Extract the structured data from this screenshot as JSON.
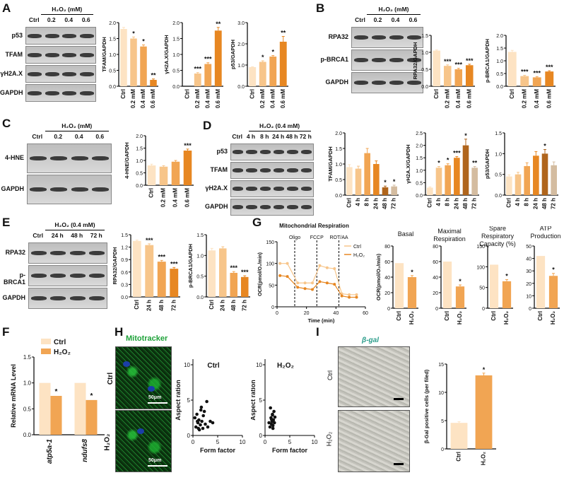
{
  "panels": {
    "A": {
      "letter": "A",
      "treatment": "H₂O₂ (mM)",
      "lanes": [
        "Ctrl",
        "0.2",
        "0.4",
        "0.6"
      ],
      "proteins": [
        "p53",
        "TFAM",
        "γH2A.X",
        "GAPDH"
      ]
    },
    "B": {
      "letter": "B",
      "treatment": "H₂O₂ (mM)",
      "lanes": [
        "Ctrl",
        "0.2",
        "0.4",
        "0.6"
      ],
      "proteins": [
        "RPA32",
        "p-BRCA1",
        "GAPDH"
      ]
    },
    "C": {
      "letter": "C",
      "treatment": "H₂O₂ (mM)",
      "lanes": [
        "Ctrl",
        "0.2",
        "0.4",
        "0.6"
      ],
      "proteins": [
        "4-HNE",
        "GAPDH"
      ]
    },
    "D": {
      "letter": "D",
      "treatment": "H₂O₂ (0.4 mM)",
      "lanes": [
        "Ctrl",
        "4 h",
        "8 h",
        "24 h",
        "48 h",
        "72 h"
      ],
      "proteins": [
        "p53",
        "TFAM",
        "γH2A.X",
        "GAPDH"
      ]
    },
    "E": {
      "letter": "E",
      "treatment": "H₂O₂ (0.4 mM)",
      "lanes": [
        "Ctrl",
        "24 h",
        "48 h",
        "72 h"
      ],
      "proteins": [
        "RPA32",
        "p-BRCA1",
        "GAPDH"
      ]
    },
    "F": {
      "letter": "F"
    },
    "G": {
      "letter": "G"
    },
    "H": {
      "letter": "H",
      "stain": "Mitotracker",
      "rows": [
        "Ctrl",
        "H₂O₂"
      ],
      "scale": "50μm"
    },
    "I": {
      "letter": "I",
      "stain": "β-gal",
      "rows": [
        "Ctrl",
        "H₂O₂"
      ]
    }
  },
  "colors": {
    "c0": "#fde3c3",
    "c1": "#f7c58a",
    "c2": "#f1a553",
    "c3": "#e78722",
    "c4": "#b0651c",
    "c5": "#d4bca0",
    "ctrl": "#fde3c3",
    "h2o2": "#f1a553"
  },
  "chart_data": [
    {
      "id": "A1",
      "type": "bar",
      "ylabel": "TFAM/GAPDH",
      "categories": [
        "Ctrl",
        "0.2 mM",
        "0.4 mM",
        "0.6 mM"
      ],
      "values": [
        1.8,
        1.5,
        1.25,
        0.2
      ],
      "errors": [
        0.05,
        0.05,
        0.05,
        0.03
      ],
      "sig": [
        "",
        "*",
        "*",
        "**"
      ],
      "ylim": [
        0,
        2
      ],
      "yticks": [
        0.0,
        0.5,
        1.0,
        1.5,
        2.0
      ]
    },
    {
      "id": "A2",
      "type": "bar",
      "ylabel": "γH2A.X/GAPDH",
      "categories": [
        "Ctrl",
        "0.2 mM",
        "0.4 mM",
        "0.6 mM"
      ],
      "values": [
        0,
        0.4,
        0.7,
        1.75
      ],
      "errors": [
        0,
        0.03,
        0.04,
        0.1
      ],
      "sig": [
        "",
        "***",
        "***",
        "**"
      ],
      "ylim": [
        0,
        2
      ],
      "yticks": [
        0.0,
        0.5,
        1.0,
        1.5,
        2.0
      ]
    },
    {
      "id": "A3",
      "type": "bar",
      "ylabel": "p53/GAPDH",
      "categories": [
        "Ctrl",
        "0.2 mM",
        "0.4 mM",
        "0.6 mM"
      ],
      "values": [
        0.9,
        1.15,
        1.4,
        2.1
      ],
      "errors": [
        0.02,
        0.05,
        0.05,
        0.25
      ],
      "sig": [
        "",
        "*",
        "*",
        "**"
      ],
      "ylim": [
        0,
        3
      ],
      "yticks": [
        0,
        1,
        2,
        3
      ]
    },
    {
      "id": "B1",
      "type": "bar",
      "ylabel": "RPA32/GAPDH",
      "categories": [
        "Ctrl",
        "0.2 mM",
        "0.4 mM",
        "0.6 mM"
      ],
      "values": [
        1.05,
        0.6,
        0.5,
        0.62
      ],
      "errors": [
        0.02,
        0.03,
        0.03,
        0.03
      ],
      "sig": [
        "",
        "***",
        "***",
        "***"
      ],
      "ylim": [
        0,
        1.5
      ],
      "yticks": [
        0.0,
        0.5,
        1.0,
        1.5
      ]
    },
    {
      "id": "B2",
      "type": "bar",
      "ylabel": "p-BRCA1/GAPDH",
      "categories": [
        "Ctrl",
        "0.2 mM",
        "0.4 mM",
        "0.6 mM"
      ],
      "values": [
        1.35,
        0.4,
        0.35,
        0.58
      ],
      "errors": [
        0.06,
        0.03,
        0.03,
        0.03
      ],
      "sig": [
        "",
        "***",
        "***",
        "***"
      ],
      "ylim": [
        0,
        2
      ],
      "yticks": [
        0.0,
        0.5,
        1.0,
        1.5,
        2.0
      ]
    },
    {
      "id": "C1",
      "type": "bar",
      "ylabel": "4-HNE/GAPDH",
      "categories": [
        "Ctrl",
        "0.2 mM",
        "0.4 mM",
        "0.6 mM"
      ],
      "values": [
        0.8,
        0.75,
        0.95,
        1.4
      ],
      "errors": [
        0.05,
        0.04,
        0.05,
        0.06
      ],
      "sig": [
        "",
        "",
        "",
        "***"
      ],
      "ylim": [
        0,
        2
      ],
      "yticks": [
        0.0,
        0.5,
        1.0,
        1.5,
        2.0
      ]
    },
    {
      "id": "D1",
      "type": "bar",
      "ylabel": "TFAM/GAPDH",
      "categories": [
        "Ctrl",
        "4 h",
        "8 h",
        "24 h",
        "48 h",
        "72 h"
      ],
      "values": [
        0.9,
        0.85,
        1.35,
        1.0,
        0.25,
        0.28
      ],
      "errors": [
        0.08,
        0.08,
        0.15,
        0.1,
        0.04,
        0.04
      ],
      "sig": [
        "",
        "",
        "",
        "",
        "*",
        "*"
      ],
      "ylim": [
        0,
        2
      ],
      "yticks": [
        0.0,
        0.5,
        1.0,
        1.5,
        2.0
      ]
    },
    {
      "id": "D2",
      "type": "bar",
      "ylabel": "γH2A.X/GAPDH",
      "categories": [
        "Ctrl",
        "4 h",
        "8 h",
        "24 h",
        "48 h",
        "72 h"
      ],
      "values": [
        0.3,
        1.1,
        1.2,
        1.5,
        2.0,
        1.1
      ],
      "errors": [
        0.03,
        0.05,
        0.06,
        0.05,
        0.25,
        0.05
      ],
      "sig": [
        "",
        "*",
        "*",
        "***",
        "*",
        "**"
      ],
      "ylim": [
        0,
        2.5
      ],
      "yticks": [
        0.0,
        0.5,
        1.0,
        1.5,
        2.0,
        2.5
      ]
    },
    {
      "id": "D3",
      "type": "bar",
      "ylabel": "p53/GAPDH",
      "categories": [
        "Ctrl",
        "4 h",
        "8 h",
        "24 h",
        "48 h",
        "72 h"
      ],
      "values": [
        0.45,
        0.5,
        0.7,
        0.95,
        1.0,
        0.72
      ],
      "errors": [
        0.04,
        0.05,
        0.08,
        0.1,
        0.1,
        0.08
      ],
      "sig": [
        "",
        "",
        "",
        "",
        "*",
        ""
      ],
      "ylim": [
        0,
        1.5
      ],
      "yticks": [
        0.0,
        0.5,
        1.0,
        1.5
      ]
    },
    {
      "id": "E1",
      "type": "bar",
      "ylabel": "RPA32/GAPDH",
      "categories": [
        "Ctrl",
        "24 h",
        "48 h",
        "72 h"
      ],
      "values": [
        1.35,
        1.25,
        0.85,
        0.68
      ],
      "errors": [
        0.02,
        0.03,
        0.03,
        0.03
      ],
      "sig": [
        "",
        "***",
        "***",
        "***"
      ],
      "ylim": [
        0,
        1.5
      ],
      "yticks": [
        0.0,
        0.3,
        0.6,
        0.9,
        1.2,
        1.5
      ]
    },
    {
      "id": "E2",
      "type": "bar",
      "ylabel": "p-BRCA1/GAPDH",
      "categories": [
        "Ctrl",
        "24 h",
        "48 h",
        "72 h"
      ],
      "values": [
        1.12,
        1.17,
        0.58,
        0.48
      ],
      "errors": [
        0.05,
        0.04,
        0.03,
        0.03
      ],
      "sig": [
        "",
        "",
        "***",
        "***"
      ],
      "ylim": [
        0,
        1.5
      ],
      "yticks": [
        0.0,
        0.5,
        1.0,
        1.5
      ]
    },
    {
      "id": "G1",
      "type": "line",
      "title": "Mitochondrial Respiration",
      "xlabel": "Time (min)",
      "ylabel": "OCR(pmol/O₂/min)",
      "xlim": [
        0,
        60
      ],
      "ylim": [
        0,
        150
      ],
      "xticks": [
        0,
        20,
        40,
        60
      ],
      "yticks": [
        0,
        50,
        100,
        150
      ],
      "annotations": [
        "Oligo",
        "FCCP",
        "ROT/AA"
      ],
      "vlines": [
        12,
        27,
        42
      ],
      "legend": [
        "Ctrl",
        "H₂O₂"
      ],
      "series": [
        {
          "name": "Ctrl",
          "x": [
            2,
            7,
            14,
            19,
            24,
            29,
            34,
            39,
            44,
            49,
            54
          ],
          "y": [
            100,
            100,
            55,
            55,
            55,
            95,
            90,
            88,
            30,
            28,
            28
          ]
        },
        {
          "name": "H₂O₂",
          "x": [
            2,
            7,
            14,
            19,
            24,
            29,
            34,
            39,
            44,
            49,
            54
          ],
          "y": [
            72,
            70,
            45,
            42,
            40,
            58,
            55,
            52,
            25,
            22,
            22
          ]
        }
      ]
    },
    {
      "id": "G2",
      "type": "bar",
      "title": "Basal",
      "ylabel": "OCR(pmol/O₂/min)",
      "categories": [
        "Ctrl",
        "H₂O₂"
      ],
      "values": [
        58,
        40
      ],
      "errors": [
        0,
        2
      ],
      "sig": [
        "",
        "*"
      ],
      "ylim": [
        0,
        80
      ],
      "yticks": [
        0,
        20,
        40,
        60,
        80
      ]
    },
    {
      "id": "G3",
      "type": "bar",
      "title": "Maximal Respiration",
      "ylabel": "",
      "categories": [
        "Ctrl",
        "H₂O₂"
      ],
      "values": [
        60,
        28
      ],
      "errors": [
        0,
        2
      ],
      "sig": [
        "",
        "*"
      ],
      "ylim": [
        0,
        80
      ],
      "yticks": [
        0,
        20,
        40,
        60,
        80
      ]
    },
    {
      "id": "G4",
      "type": "bar",
      "title": "Spare Respiratory Capacity (%)",
      "ylabel": "",
      "categories": [
        "Ctrl",
        "H₂O₂"
      ],
      "values": [
        105,
        65
      ],
      "errors": [
        0,
        4
      ],
      "sig": [
        "",
        "*"
      ],
      "ylim": [
        0,
        150
      ],
      "yticks": [
        0,
        50,
        100,
        150
      ]
    },
    {
      "id": "G5",
      "type": "bar",
      "title": "ATP Production",
      "ylabel": "",
      "categories": [
        "Ctrl",
        "H₂O₂"
      ],
      "values": [
        42,
        26
      ],
      "errors": [
        0,
        2
      ],
      "sig": [
        "",
        "*"
      ],
      "ylim": [
        0,
        50
      ],
      "yticks": [
        0,
        10,
        20,
        30,
        40,
        50
      ]
    },
    {
      "id": "F1",
      "type": "bar",
      "ylabel": "Relative mRNA Level",
      "groups": [
        "atp5a-1",
        "ndufs8"
      ],
      "series": [
        {
          "name": "Ctrl",
          "values": [
            1.0,
            1.0
          ]
        },
        {
          "name": "H₂O₂",
          "values": [
            0.75,
            0.67
          ]
        }
      ],
      "errors": [
        0.02,
        0.02
      ],
      "sig": [
        "*",
        "*"
      ],
      "ylim": [
        0,
        1.5
      ],
      "yticks": [
        0.0,
        0.5,
        1.0,
        1.5
      ],
      "legend": [
        "Ctrl",
        "H₂O₂"
      ]
    },
    {
      "id": "H1",
      "type": "scatter",
      "title": "Ctrl",
      "xlabel": "Form factor",
      "ylabel": "Aspect ration",
      "xlim": [
        0,
        10
      ],
      "ylim": [
        0,
        10
      ],
      "xticks": [
        0,
        5,
        10
      ],
      "yticks": [
        0,
        5,
        10
      ],
      "x": [
        0.4,
        0.6,
        0.8,
        1.0,
        1.2,
        1.3,
        1.5,
        1.6,
        1.8,
        2.0,
        2.1,
        2.3,
        2.5,
        2.8,
        3.0,
        3.5,
        4.0,
        1.1,
        0.9,
        1.7
      ],
      "y": [
        2.5,
        1.2,
        3.0,
        1.8,
        2.2,
        0.8,
        1.5,
        3.6,
        2.0,
        1.0,
        2.8,
        3.4,
        1.6,
        4.8,
        1.2,
        2.0,
        1.8,
        1.0,
        2.0,
        4.0
      ]
    },
    {
      "id": "H2",
      "type": "scatter",
      "title": "H₂O₂",
      "xlabel": "Form factor",
      "ylabel": "Aspect ration",
      "xlim": [
        0,
        10
      ],
      "ylim": [
        0,
        10
      ],
      "xticks": [
        0,
        5,
        10
      ],
      "yticks": [
        0,
        5,
        10
      ],
      "x": [
        0.8,
        1.0,
        1.2,
        1.3,
        1.4,
        1.5,
        1.6,
        1.7,
        1.8,
        1.9,
        2.0,
        1.1,
        1.5,
        1.6,
        1.3
      ],
      "y": [
        1.8,
        1.2,
        2.5,
        1.6,
        2.0,
        3.0,
        1.4,
        2.2,
        3.4,
        1.8,
        2.6,
        3.9,
        2.9,
        1.0,
        2.3
      ]
    },
    {
      "id": "I1",
      "type": "bar",
      "ylabel": "β-Gal positive cells (per filed)",
      "categories": [
        "Ctrl",
        "H₂O₂"
      ],
      "values": [
        4.6,
        13.0
      ],
      "errors": [
        0.2,
        0.4
      ],
      "sig": [
        "",
        "*"
      ],
      "ylim": [
        0,
        15
      ],
      "yticks": [
        0,
        5,
        10,
        15
      ]
    }
  ]
}
